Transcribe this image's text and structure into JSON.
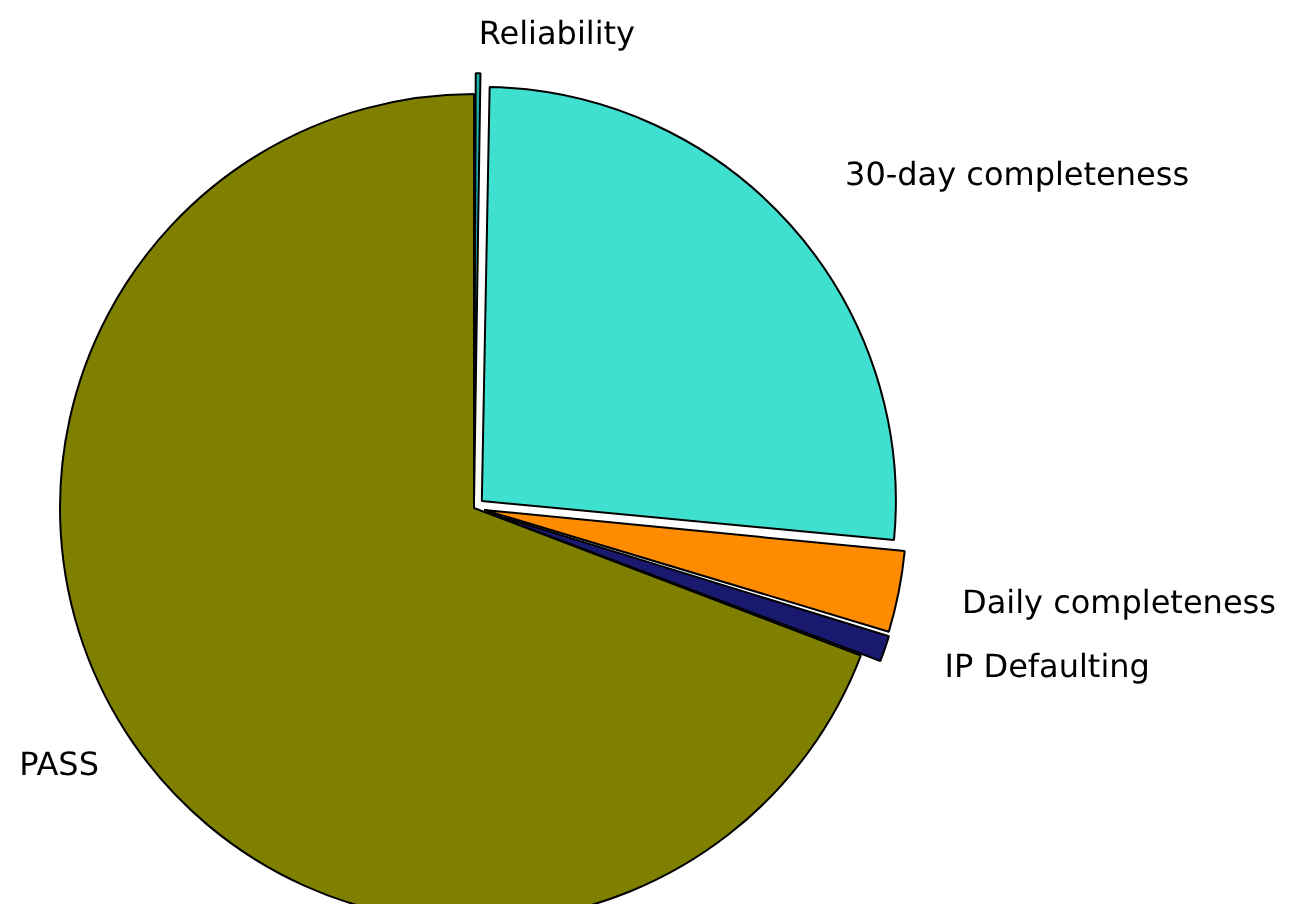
{
  "chart_data": {
    "type": "pie",
    "categories": [
      "Reliability",
      "30-day completeness",
      "Daily completeness",
      "IP Defaulting",
      "PASS"
    ],
    "values": [
      0.3,
      26.2,
      3.2,
      1.1,
      69.2
    ],
    "colors": [
      "#20b2aa",
      "#40e0d0",
      "#ff8c00",
      "#191970",
      "#808000"
    ],
    "legend": false
  }
}
